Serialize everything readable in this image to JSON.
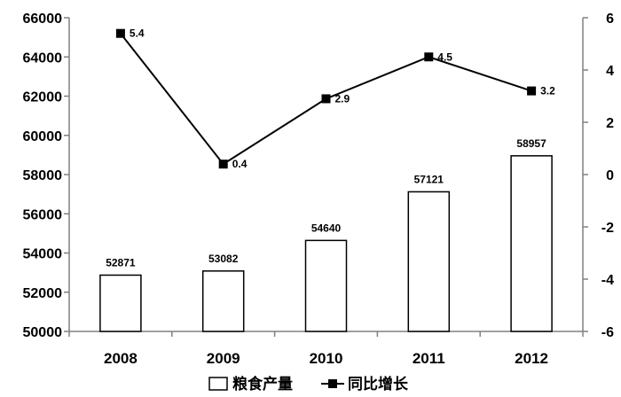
{
  "chart_data": {
    "type": "bar",
    "categories": [
      "2008",
      "2009",
      "2010",
      "2011",
      "2012"
    ],
    "series": [
      {
        "name": "粮食产量",
        "type": "bar",
        "axis": "left",
        "values": [
          52871,
          53082,
          54640,
          57121,
          58957
        ]
      },
      {
        "name": "同比增长",
        "type": "line",
        "axis": "right",
        "values": [
          5.4,
          0.4,
          2.9,
          4.5,
          3.2
        ]
      }
    ],
    "y_left": {
      "min": 50000,
      "max": 66000,
      "ticks": [
        50000,
        52000,
        54000,
        56000,
        58000,
        60000,
        62000,
        64000,
        66000
      ]
    },
    "y_right": {
      "min": -6,
      "max": 6,
      "ticks": [
        -6,
        -4,
        -2,
        0,
        2,
        4,
        6
      ]
    },
    "grid": false,
    "legend": "bottom",
    "colors": {
      "bar_fill": "#ffffff",
      "bar_stroke": "#000000",
      "line": "#000000",
      "marker": "#000000",
      "axis": "#808080"
    }
  }
}
